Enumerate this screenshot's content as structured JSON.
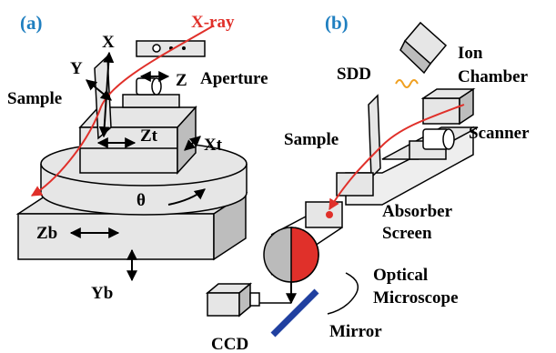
{
  "panel_a": {
    "label": "(a)",
    "xray": "X-ray",
    "axes": {
      "x": "X",
      "y": "Y",
      "z": "Z"
    },
    "aperture": "Aperture",
    "sample": "Sample",
    "zt": "Zt",
    "xt": "Xt",
    "theta": "θ",
    "zb": "Zb",
    "yb": "Yb"
  },
  "panel_b": {
    "label": "(b)",
    "sdd": "SDD",
    "ion_chamber": [
      "Ion",
      "Chamber"
    ],
    "sample": "Sample",
    "scanner": "Scanner",
    "absorber": "Absorber",
    "screen": "Screen",
    "optical_microscope": [
      "Optical",
      "Microscope"
    ],
    "mirror": "Mirror",
    "ccd": "CCD"
  }
}
